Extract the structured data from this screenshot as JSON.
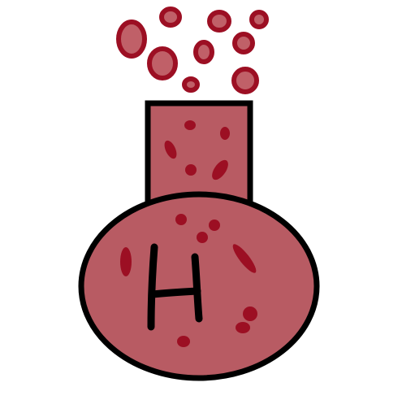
{
  "illustration": {
    "subject": "flask-with-bubbles",
    "flask_label": "H",
    "colors": {
      "flask_fill": "#b85b63",
      "outline": "#000000",
      "bubble_ring": "#9c0f23",
      "bubble_fill": "#c06068",
      "speck": "#9c0f23",
      "background": "#ffffff"
    }
  }
}
